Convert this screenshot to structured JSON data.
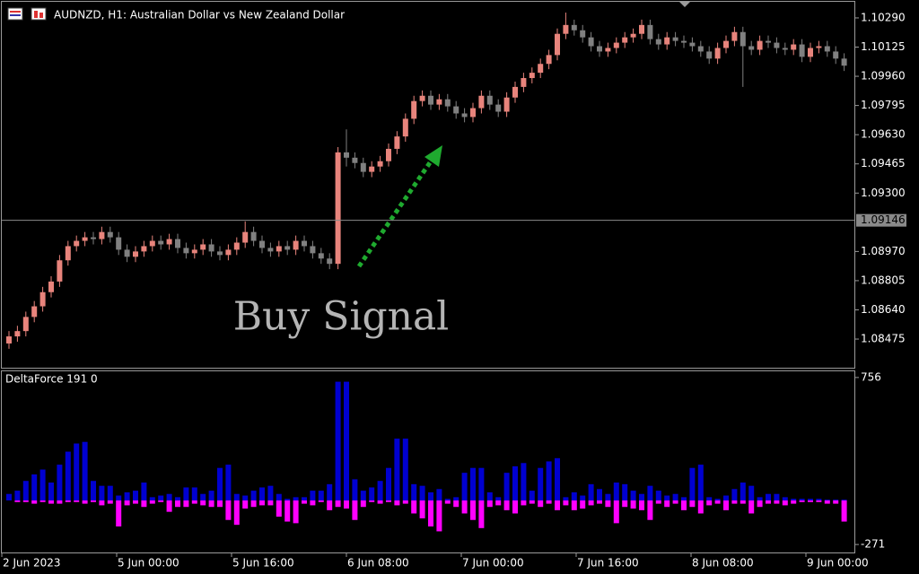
{
  "chart_data": [
    {
      "type": "candlestick",
      "title": "AUDNZD, H1:  Australian Dollar vs New Zealand Dollar",
      "annotation": "Buy Signal",
      "up_color": "#e8847c",
      "down_color": "#808080",
      "open": [
        1.0845,
        1.0849,
        1.0852,
        1.086,
        1.0866,
        1.0874,
        1.088,
        1.0892,
        1.09,
        1.0903,
        1.0905,
        1.0904,
        1.0908,
        1.0905,
        1.0898,
        1.0894,
        1.0897,
        1.09,
        1.0903,
        1.0901,
        1.0904,
        1.0899,
        1.0896,
        1.0898,
        1.0901,
        1.0897,
        1.0895,
        1.0898,
        1.0902,
        1.0908,
        1.0903,
        1.0899,
        1.0897,
        1.09,
        1.0898,
        1.0903,
        1.09,
        1.0896,
        1.0893,
        1.089,
        1.0953,
        1.095,
        1.0947,
        1.0942,
        1.0945,
        1.0948,
        1.0955,
        1.0962,
        1.0972,
        1.0982,
        1.0985,
        1.098,
        1.0983,
        1.0979,
        1.0975,
        1.0973,
        1.0978,
        1.0985,
        1.098,
        1.0976,
        1.0984,
        1.099,
        1.0995,
        1.0998,
        1.1003,
        1.1008,
        1.102,
        1.1025,
        1.1022,
        1.1018,
        1.1013,
        1.101,
        1.1012,
        1.1015,
        1.1018,
        1.102,
        1.1025,
        1.1017,
        1.1014,
        1.1018,
        1.1016,
        1.1015,
        1.1013,
        1.101,
        1.1006,
        1.1012,
        1.1016,
        1.1021,
        1.1013,
        1.1011,
        1.1016,
        1.1015,
        1.1012,
        1.1011,
        1.1014,
        1.1007,
        1.1012,
        1.1013,
        1.101,
        1.1006
      ],
      "high": [
        1.0852,
        1.0855,
        1.0863,
        1.0869,
        1.0877,
        1.0883,
        1.0895,
        1.0903,
        1.0906,
        1.0908,
        1.0908,
        1.0911,
        1.0911,
        1.0908,
        1.0901,
        1.09,
        1.0903,
        1.0906,
        1.0906,
        1.0907,
        1.0907,
        1.0902,
        1.0901,
        1.0904,
        1.0904,
        1.09,
        1.0901,
        1.0905,
        1.0914,
        1.0911,
        1.0906,
        1.0902,
        1.0903,
        1.0903,
        1.0906,
        1.0906,
        1.0903,
        1.0899,
        1.0896,
        1.0956,
        1.0966,
        1.0953,
        1.095,
        1.0948,
        1.0951,
        1.0958,
        1.0965,
        1.0975,
        1.0985,
        1.0988,
        1.0988,
        1.0986,
        1.0986,
        1.0982,
        1.0978,
        1.0981,
        1.0988,
        1.0988,
        1.0983,
        1.0987,
        1.0993,
        1.0998,
        1.1001,
        1.1006,
        1.1011,
        1.1023,
        1.1032,
        1.1028,
        1.1025,
        1.1021,
        1.1016,
        1.1015,
        1.1018,
        1.1021,
        1.1023,
        1.1028,
        1.1028,
        1.102,
        1.1021,
        1.1021,
        1.1019,
        1.1018,
        1.1016,
        1.1013,
        1.1015,
        1.1019,
        1.1024,
        1.1024,
        1.1016,
        1.1019,
        1.1019,
        1.1018,
        1.1015,
        1.1017,
        1.1017,
        1.1015,
        1.1016,
        1.1016,
        1.1013,
        1.1009
      ],
      "low": [
        1.0842,
        1.0846,
        1.0849,
        1.0857,
        1.0863,
        1.0871,
        1.0877,
        1.0889,
        1.0897,
        1.09,
        1.0901,
        1.0901,
        1.0902,
        1.0895,
        1.0891,
        1.0891,
        1.0894,
        1.0897,
        1.0898,
        1.0898,
        1.0896,
        1.0893,
        1.0893,
        1.0895,
        1.0894,
        1.0892,
        1.0892,
        1.0895,
        1.0899,
        1.09,
        1.0896,
        1.0894,
        1.0894,
        1.0895,
        1.0895,
        1.0897,
        1.0893,
        1.089,
        1.0887,
        1.0887,
        1.0945,
        1.0944,
        1.0939,
        1.0939,
        1.0942,
        1.0945,
        1.0952,
        1.0959,
        1.0969,
        1.0979,
        1.0977,
        1.0977,
        1.0976,
        1.0972,
        1.097,
        1.097,
        1.0975,
        1.0977,
        1.0973,
        1.0973,
        1.0981,
        1.0987,
        1.0992,
        1.0995,
        1.1,
        1.1005,
        1.1017,
        1.1019,
        1.1015,
        1.101,
        1.1007,
        1.1007,
        1.1009,
        1.1012,
        1.1015,
        1.1017,
        1.1014,
        1.1011,
        1.1011,
        1.1013,
        1.1012,
        1.101,
        1.1007,
        1.1003,
        1.1003,
        1.1009,
        1.1013,
        1.099,
        1.1008,
        1.1008,
        1.1012,
        1.1009,
        1.1008,
        1.1008,
        1.1004,
        1.1004,
        1.1009,
        1.1007,
        1.1003,
        1.0999
      ],
      "close": [
        1.0849,
        1.0852,
        1.086,
        1.0866,
        1.0874,
        1.088,
        1.0892,
        1.09,
        1.0903,
        1.0905,
        1.0904,
        1.0908,
        1.0905,
        1.0898,
        1.0894,
        1.0897,
        1.09,
        1.0903,
        1.0901,
        1.0904,
        1.0899,
        1.0896,
        1.0898,
        1.0901,
        1.0897,
        1.0895,
        1.0898,
        1.0902,
        1.0908,
        1.0903,
        1.0899,
        1.0897,
        1.09,
        1.0898,
        1.0903,
        1.09,
        1.0896,
        1.0893,
        1.089,
        1.0953,
        1.095,
        1.0947,
        1.0942,
        1.0945,
        1.0948,
        1.0955,
        1.0962,
        1.0972,
        1.0982,
        1.0985,
        1.098,
        1.0983,
        1.0979,
        1.0975,
        1.0973,
        1.0978,
        1.0985,
        1.098,
        1.0976,
        1.0984,
        1.099,
        1.0995,
        1.0998,
        1.1003,
        1.1008,
        1.102,
        1.1025,
        1.1022,
        1.1018,
        1.1013,
        1.101,
        1.1012,
        1.1015,
        1.1018,
        1.102,
        1.1025,
        1.1017,
        1.1014,
        1.1018,
        1.1016,
        1.1015,
        1.1013,
        1.101,
        1.1006,
        1.1012,
        1.1016,
        1.1021,
        1.1013,
        1.1011,
        1.1016,
        1.1015,
        1.1012,
        1.1011,
        1.1014,
        1.1007,
        1.1012,
        1.1013,
        1.101,
        1.1006,
        1.1002
      ],
      "ylim": [
        1.08313,
        1.10381
      ],
      "yticks": [
        {
          "value": 1.1029,
          "label": "1.10290"
        },
        1.10125,
        {
          "value": 1.0996,
          "label": "1.09960"
        },
        1.09795,
        {
          "value": 1.0963,
          "label": "1.09630"
        },
        1.09465,
        {
          "value": 1.093,
          "label": "1.09300"
        },
        {
          "value": 1.0897,
          "label": "1.08970"
        },
        1.08805,
        {
          "value": 1.0864,
          "label": "1.08640"
        },
        1.08475
      ],
      "current_price": 1.09146,
      "x_labels": [
        "2 Jun 2023",
        "5 Jun 00:00",
        "5 Jun 16:00",
        "6 Jun 08:00",
        "7 Jun 00:00",
        "7 Jun 16:00",
        "8 Jun 08:00",
        "9 Jun 00:00"
      ]
    },
    {
      "type": "bar",
      "title": "DeltaForce 191 0",
      "ylim": [
        -320,
        794
      ],
      "yticks": [
        756,
        -271
      ],
      "series": [
        {
          "color": "#0000d0",
          "values": [
            40,
            60,
            120,
            160,
            190,
            110,
            220,
            300,
            350,
            360,
            120,
            90,
            90,
            30,
            50,
            60,
            110,
            20,
            30,
            40,
            20,
            80,
            80,
            40,
            60,
            200,
            220,
            40,
            30,
            60,
            80,
            90,
            40,
            10,
            20,
            20,
            60,
            60,
            100,
            730,
            730,
            130,
            60,
            80,
            120,
            200,
            380,
            380,
            100,
            90,
            50,
            70,
            10,
            20,
            170,
            200,
            200,
            50,
            20,
            170,
            210,
            230,
            60,
            200,
            240,
            260,
            20,
            50,
            30,
            100,
            70,
            40,
            110,
            100,
            60,
            40,
            90,
            60,
            30,
            40,
            20,
            200,
            220,
            20,
            10,
            30,
            70,
            110,
            90,
            20,
            40,
            40,
            20,
            10,
            10,
            10,
            10,
            5,
            5,
            5
          ]
        },
        {
          "color": "#ff00ff",
          "values": [
            0,
            -10,
            -10,
            -20,
            -10,
            -20,
            -20,
            -10,
            -10,
            -20,
            -10,
            -30,
            -20,
            -160,
            -30,
            -20,
            -40,
            -20,
            -10,
            -70,
            -40,
            -40,
            -20,
            -30,
            -40,
            -40,
            -120,
            -150,
            -50,
            -40,
            -30,
            -30,
            -100,
            -130,
            -140,
            -20,
            -30,
            -10,
            -60,
            -40,
            -50,
            -120,
            -40,
            -10,
            -20,
            -10,
            -30,
            -20,
            -80,
            -110,
            -160,
            -190,
            -20,
            -40,
            -80,
            -120,
            -170,
            -40,
            -30,
            -60,
            -80,
            -30,
            -20,
            -40,
            -20,
            -60,
            -30,
            -60,
            -50,
            -30,
            -20,
            -40,
            -140,
            -40,
            -50,
            -60,
            -120,
            -20,
            -40,
            -20,
            -60,
            -40,
            -80,
            -30,
            -20,
            -60,
            -20,
            -20,
            -80,
            -40,
            -20,
            -20,
            -30,
            -20,
            -10,
            -10,
            -10,
            -20,
            -20,
            -130
          ]
        }
      ]
    }
  ]
}
